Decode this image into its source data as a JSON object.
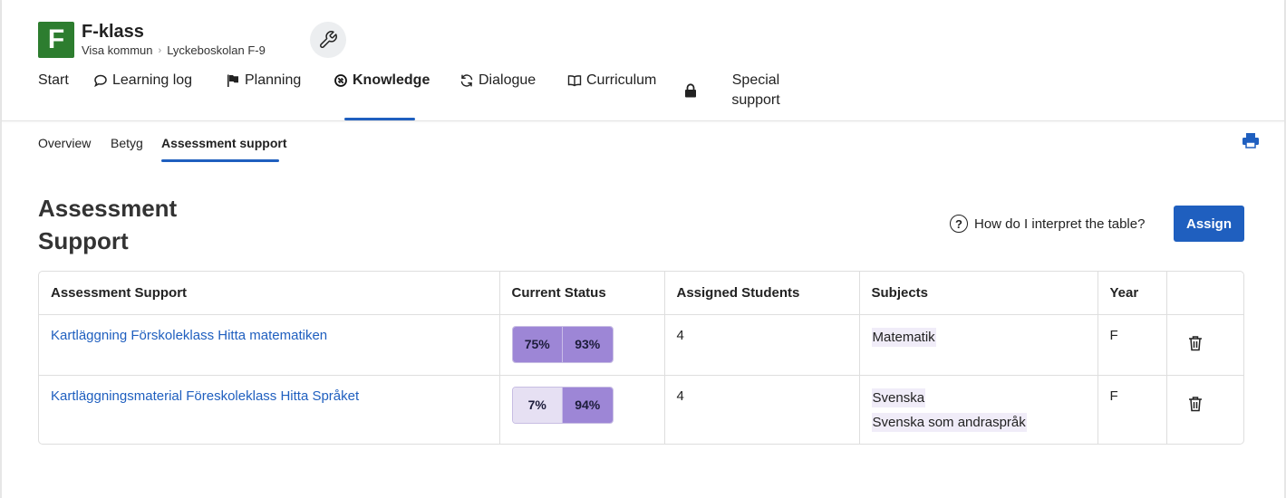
{
  "header": {
    "logo_letter": "F",
    "class_title": "F-klass",
    "breadcrumbs": [
      "Visa kommun",
      "Lyckeboskolan F-9"
    ]
  },
  "mainnav": [
    {
      "label": "Start",
      "icon": "none"
    },
    {
      "label": "Learning log",
      "icon": "speech-bubble-icon"
    },
    {
      "label": "Planning",
      "icon": "flag-icon"
    },
    {
      "label": "Knowledge",
      "icon": "knowledge-icon",
      "active": true
    },
    {
      "label": "Dialogue",
      "icon": "refresh-icon"
    },
    {
      "label": "Curriculum",
      "icon": "book-icon"
    },
    {
      "label": "Special support",
      "icon": "lock-icon"
    }
  ],
  "subnav": [
    "Overview",
    "Betyg",
    "Assessment support"
  ],
  "page": {
    "title": "Assessment Support",
    "help_text": "How do I interpret the table?",
    "assign_label": "Assign"
  },
  "table": {
    "columns": [
      "Assessment Support",
      "Current Status",
      "Assigned Students",
      "Subjects",
      "Year",
      ""
    ],
    "rows": [
      {
        "name": "Kartläggning Förskoleklass Hitta matematiken",
        "status": [
          "75%",
          "93%"
        ],
        "status_shade": [
          "dark",
          "dark"
        ],
        "students": "4",
        "subjects": [
          "Matematik"
        ],
        "year": "F"
      },
      {
        "name": "Kartläggningsmaterial Föreskoleklass Hitta Språket",
        "status": [
          "7%",
          "94%"
        ],
        "status_shade": [
          "light",
          "dark"
        ],
        "students": "4",
        "subjects": [
          "Svenska",
          "Svenska som andraspråk"
        ],
        "year": "F"
      }
    ]
  },
  "colors": {
    "brand_green": "#2d7d2f",
    "accent_blue": "#1f5fbf",
    "status_dark": "#9d86d6",
    "status_light": "#e6e0f3"
  }
}
